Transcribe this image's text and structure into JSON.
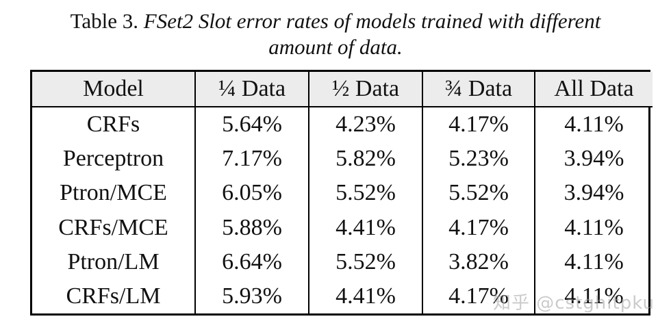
{
  "caption": {
    "lead": "Table 3. ",
    "italic_line1": "FSet2 Slot error rates of models trained with different",
    "italic_line2": "amount of data."
  },
  "table": {
    "headers": [
      "Model",
      "¼ Data",
      "½ Data",
      "¾  Data",
      "All Data"
    ],
    "rows": [
      [
        "CRFs",
        "5.64%",
        "4.23%",
        "4.17%",
        "4.11%"
      ],
      [
        "Perceptron",
        "7.17%",
        "5.82%",
        "5.23%",
        "3.94%"
      ],
      [
        "Ptron/MCE",
        "6.05%",
        "5.52%",
        "5.52%",
        "3.94%"
      ],
      [
        "CRFs/MCE",
        "5.88%",
        "4.41%",
        "4.17%",
        "4.11%"
      ],
      [
        "Ptron/LM",
        "6.64%",
        "5.52%",
        "3.82%",
        "4.11%"
      ],
      [
        "CRFs/LM",
        "5.93%",
        "4.41%",
        "4.17%",
        "4.11%"
      ]
    ]
  },
  "watermark": "知乎 @cstghitpku"
}
